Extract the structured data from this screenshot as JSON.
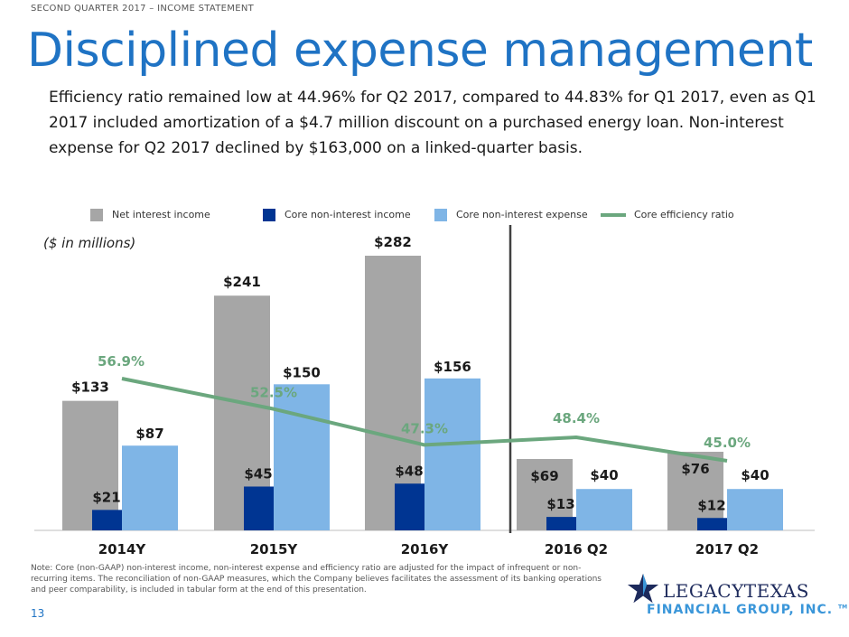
{
  "header": {
    "kicker": "SECOND QUARTER 2017 – INCOME STATEMENT",
    "title": "Disciplined expense management",
    "intro": "Efficiency ratio remained low at 44.96% for Q2 2017, compared to 44.83% for Q1 2017, even as Q1 2017 included amortization of a $4.7 million discount on a purchased energy loan.  Non-interest expense for Q2 2017 declined by $163,000 on a linked-quarter basis."
  },
  "chart_data": {
    "type": "bar",
    "units_note": "($ in millions)",
    "categories": [
      "2014Y",
      "2015Y",
      "2016Y",
      "2016 Q2",
      "2017 Q2"
    ],
    "series": [
      {
        "name": "Net interest income",
        "color": "#a6a6a6",
        "values": [
          133,
          241,
          282,
          69,
          76
        ],
        "labels": [
          "$133",
          "$241",
          "$282",
          "$69",
          "$76"
        ]
      },
      {
        "name": "Core non-interest income",
        "color": "#003592",
        "values": [
          21,
          45,
          48,
          13,
          12
        ],
        "labels": [
          "$21",
          "$45",
          "$48",
          "$13",
          "$12"
        ]
      },
      {
        "name": "Core non-interest expense",
        "color": "#7fb5e6",
        "values": [
          87,
          150,
          156,
          40,
          40
        ],
        "labels": [
          "$87",
          "$150",
          "$156",
          "$40",
          "$40"
        ]
      }
    ],
    "line_series": {
      "name": "Core efficiency ratio",
      "color": "#6ba77e",
      "values": [
        56.9,
        52.5,
        47.3,
        48.4,
        45.0
      ],
      "labels": [
        "56.9%",
        "52.5%",
        "47.3%",
        "48.4%",
        "45.0%"
      ]
    },
    "note": "Values for 2014Y–2016Y and for 2016 Q2–2017 Q2 are plotted on separate scales, divided by a vertical line."
  },
  "legend": {
    "items": [
      {
        "label": "Net interest income",
        "color": "#a6a6a6"
      },
      {
        "label": "Core non-interest income",
        "color": "#003592"
      },
      {
        "label": "Core non-interest expense",
        "color": "#7fb5e6"
      },
      {
        "label": "Core efficiency ratio",
        "color": "#6ba77e"
      }
    ]
  },
  "footer": {
    "note": "Note: Core (non-GAAP) non-interest income, non-interest expense and efficiency ratio are adjusted for the impact of infrequent or non-recurring items.  The reconciliation of non-GAAP measures, which the Company believes facilitates the assessment of its banking operations and peer comparability, is included in tabular form at the end of this presentation.",
    "page_number": "13",
    "logo_top": "LEGACYTEXAS",
    "logo_bottom": "FINANCIAL GROUP, INC.",
    "logo_tm": "TM"
  }
}
